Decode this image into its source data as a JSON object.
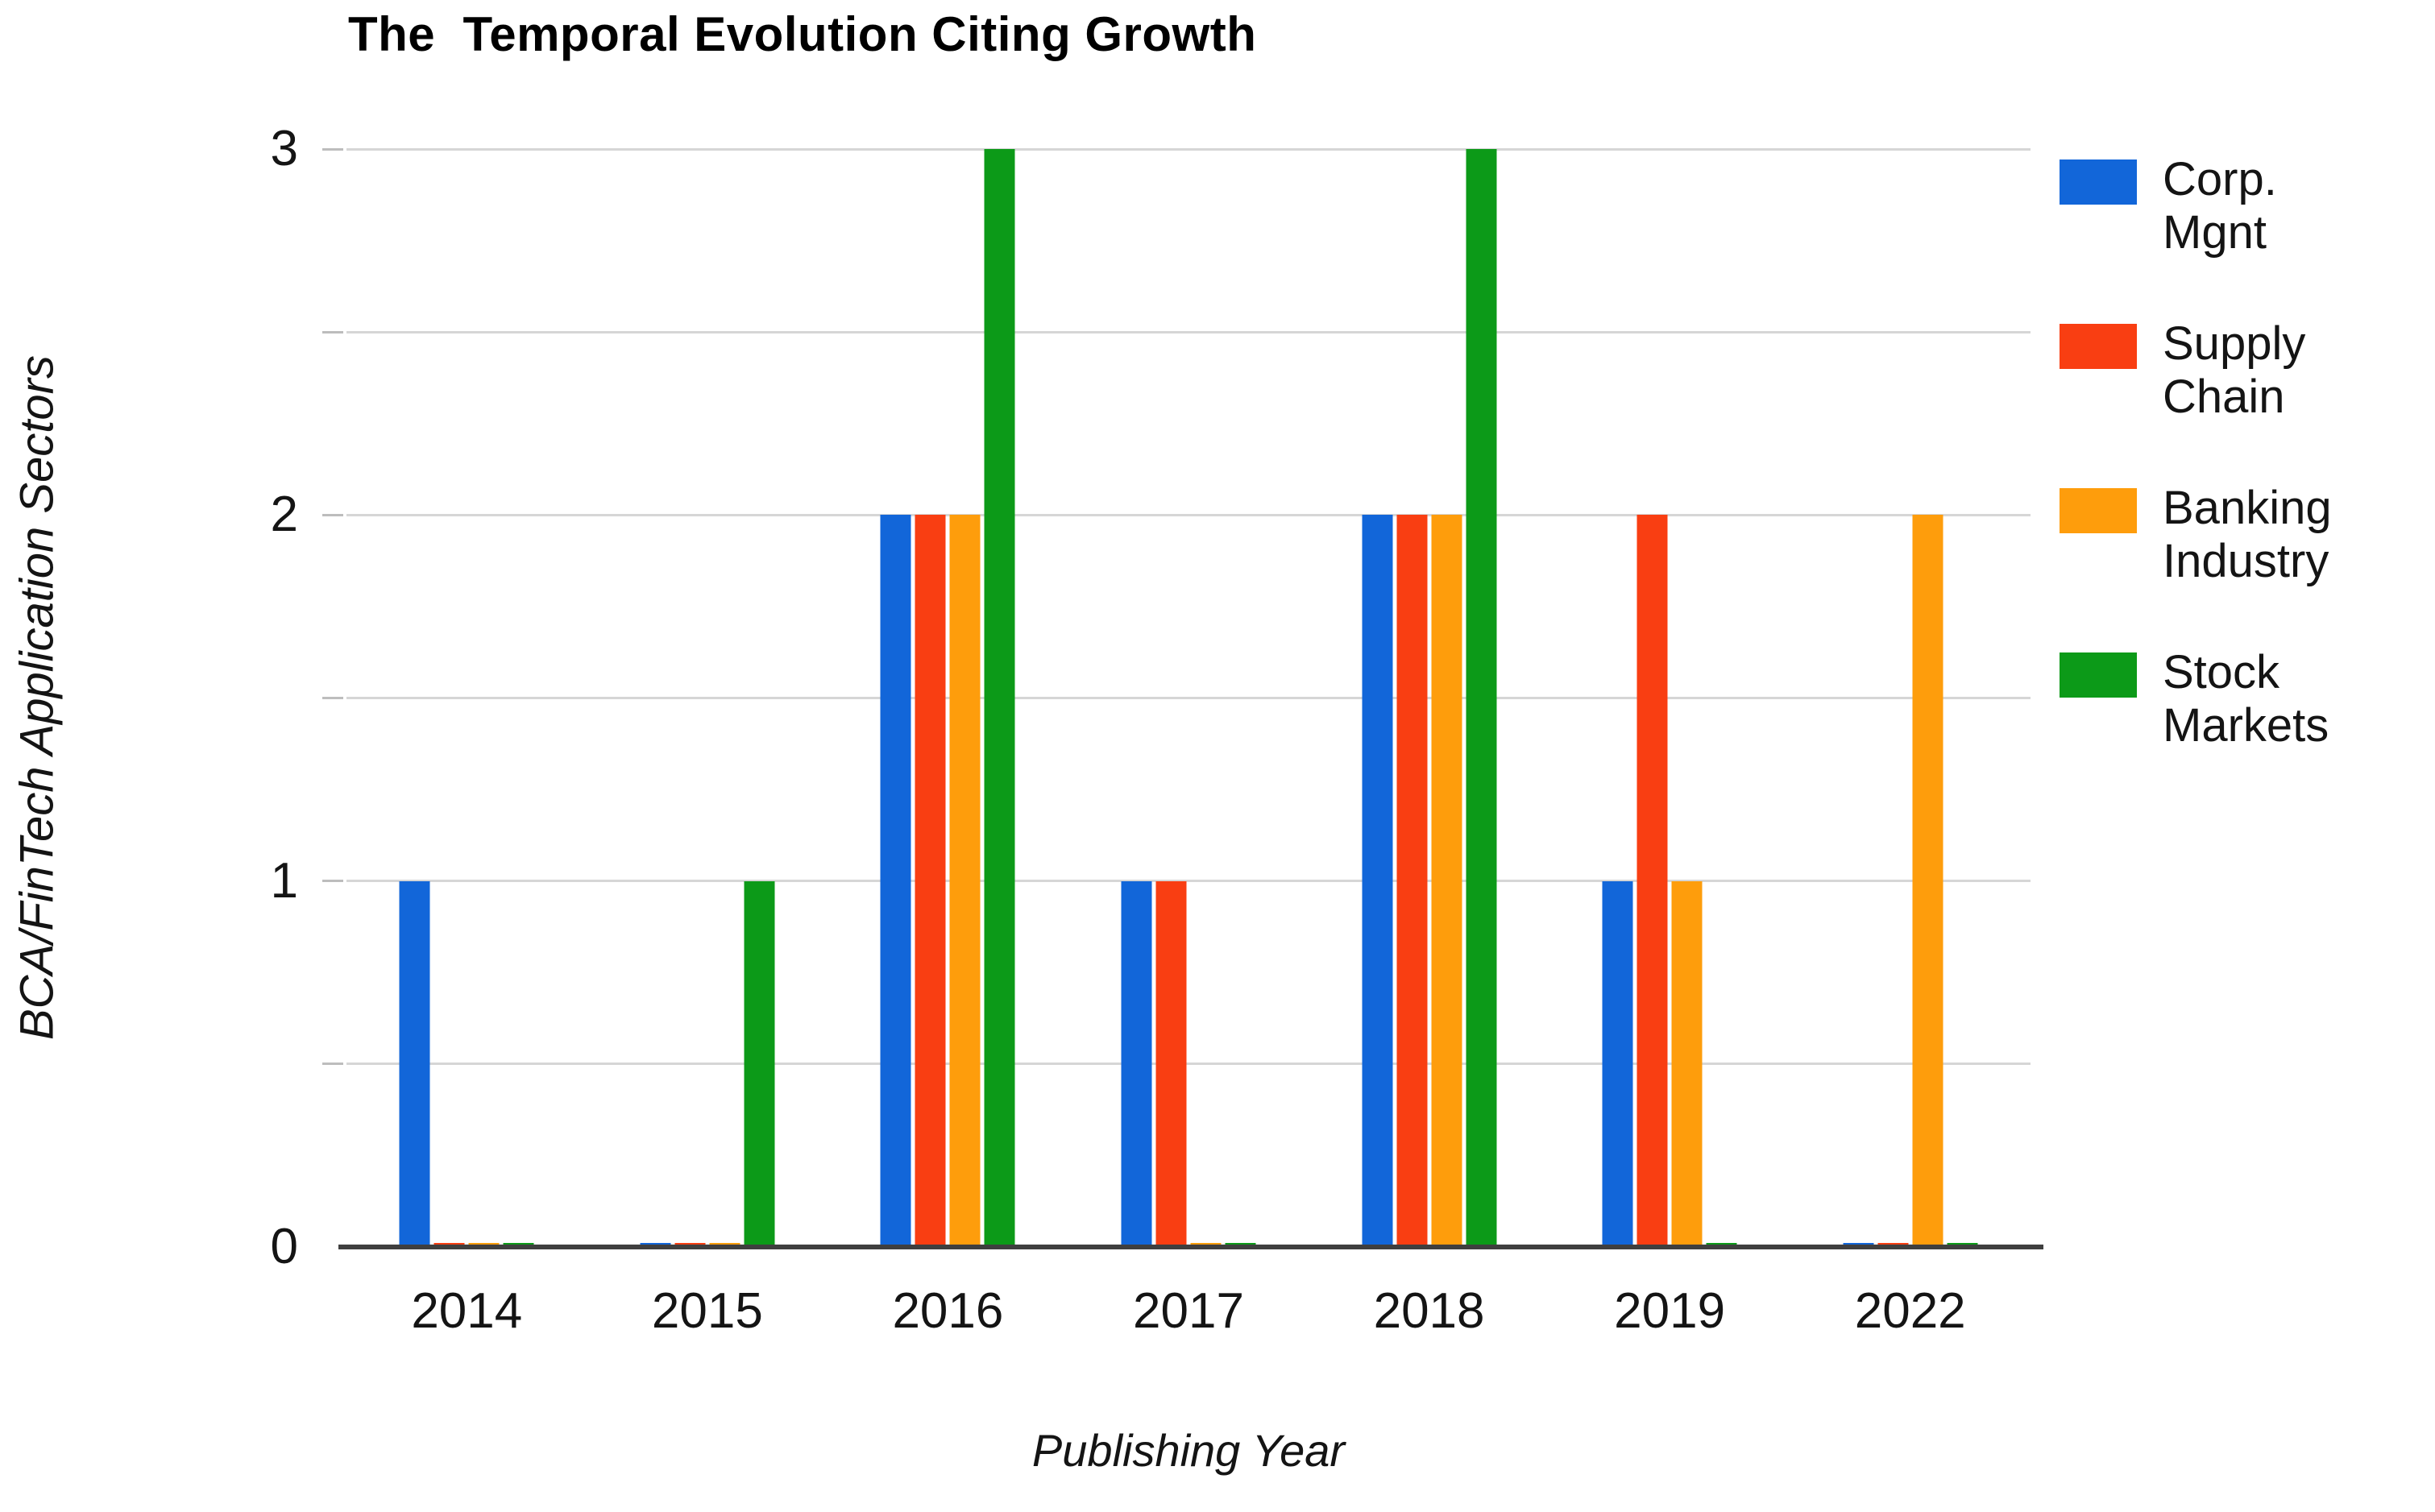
{
  "chart_data": {
    "type": "bar",
    "title": "The  Temporal Evolution Citing Growth",
    "xlabel": "Publishing Year",
    "ylabel": "BCA/FinTech Application Sectors",
    "categories": [
      "2014",
      "2015",
      "2016",
      "2017",
      "2018",
      "2019",
      "2022"
    ],
    "series": [
      {
        "name": "Corp. Mgnt",
        "color": "#1266d9",
        "values": [
          1,
          0,
          2,
          1,
          2,
          1,
          0
        ]
      },
      {
        "name": "Supply Chain",
        "color": "#f93e12",
        "values": [
          0,
          0,
          2,
          1,
          2,
          2,
          0
        ]
      },
      {
        "name": "Banking Industry",
        "color": "#fe9d0c",
        "values": [
          0,
          0,
          2,
          0,
          2,
          1,
          2
        ]
      },
      {
        "name": "Stock Markets",
        "color": "#0c9a18",
        "values": [
          0,
          1,
          3,
          0,
          3,
          0,
          0
        ]
      }
    ],
    "ylim": [
      0,
      3
    ],
    "yticks": [
      "0",
      "1",
      "2",
      "3"
    ],
    "grid_interval": 0.5,
    "grid": "horizontal",
    "legend_position": "right",
    "legend": [
      {
        "line1": "Corp.",
        "line2": "Mgnt"
      },
      {
        "line1": "Supply",
        "line2": "Chain"
      },
      {
        "line1": "Banking",
        "line2": "Industry"
      },
      {
        "line1": "Stock",
        "line2": "Markets"
      }
    ],
    "colors": {
      "gridline": "#d6d6d6",
      "axis_line": "#3f3f3f",
      "text": "#141414"
    }
  }
}
